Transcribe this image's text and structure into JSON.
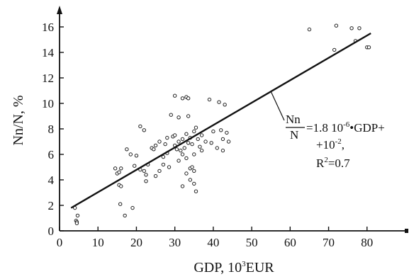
{
  "chart_data": {
    "type": "scatter",
    "title": "",
    "xlabel": "GDP, 10",
    "xlabel_sup": "3",
    "xlabel_unit": "EUR",
    "ylabel": "Nn/N, %",
    "xlim": [
      0,
      90
    ],
    "ylim": [
      0,
      17
    ],
    "x_ticks": [
      0,
      10,
      20,
      30,
      40,
      50,
      60,
      70,
      80
    ],
    "y_ticks": [
      0,
      2,
      4,
      6,
      8,
      10,
      12,
      14,
      16
    ],
    "grid": false,
    "points": [
      [
        4,
        1.8
      ],
      [
        4.3,
        0.8
      ],
      [
        4.5,
        0.7
      ],
      [
        4.5,
        0.6
      ],
      [
        4.7,
        1.2
      ],
      [
        14.5,
        4.9
      ],
      [
        15,
        4.5
      ],
      [
        15.5,
        4.6
      ],
      [
        15.5,
        3.6
      ],
      [
        16,
        4.9
      ],
      [
        16,
        3.5
      ],
      [
        15.8,
        2.1
      ],
      [
        17,
        1.2
      ],
      [
        17.5,
        6.4
      ],
      [
        18.5,
        6.0
      ],
      [
        19,
        1.8
      ],
      [
        19.5,
        5.1
      ],
      [
        20,
        5.9
      ],
      [
        21,
        8.2
      ],
      [
        21,
        4.8
      ],
      [
        22,
        7.9
      ],
      [
        22,
        4.7
      ],
      [
        22.5,
        4.4
      ],
      [
        22.5,
        3.9
      ],
      [
        23,
        5.2
      ],
      [
        24,
        6.5
      ],
      [
        24.5,
        6.4
      ],
      [
        25,
        6.7
      ],
      [
        25,
        4.3
      ],
      [
        26,
        7.0
      ],
      [
        26,
        4.7
      ],
      [
        27,
        5.8
      ],
      [
        27,
        5.2
      ],
      [
        27.5,
        6.8
      ],
      [
        28,
        7.3
      ],
      [
        28,
        6.1
      ],
      [
        28.5,
        5.0
      ],
      [
        29,
        9.1
      ],
      [
        29.5,
        7.4
      ],
      [
        30,
        10.6
      ],
      [
        30,
        7.5
      ],
      [
        30,
        6.7
      ],
      [
        30.5,
        6.4
      ],
      [
        31,
        8.9
      ],
      [
        31,
        7.0
      ],
      [
        31,
        5.5
      ],
      [
        31.5,
        6.3
      ],
      [
        32,
        10.4
      ],
      [
        32,
        7.2
      ],
      [
        32,
        6.0
      ],
      [
        32,
        3.5
      ],
      [
        32.5,
        6.5
      ],
      [
        33,
        10.5
      ],
      [
        33,
        7.6
      ],
      [
        33,
        5.7
      ],
      [
        33,
        4.5
      ],
      [
        33.5,
        10.4
      ],
      [
        33.5,
        9.0
      ],
      [
        33.5,
        6.9
      ],
      [
        34,
        7.3
      ],
      [
        34,
        4.9
      ],
      [
        34,
        4.0
      ],
      [
        34.5,
        6.8
      ],
      [
        34.5,
        5.0
      ],
      [
        35,
        7.8
      ],
      [
        35,
        6.0
      ],
      [
        35,
        4.7
      ],
      [
        35,
        3.7
      ],
      [
        35.5,
        3.1
      ],
      [
        35.5,
        8.1
      ],
      [
        36,
        7.2
      ],
      [
        36.5,
        6.6
      ],
      [
        37,
        7.5
      ],
      [
        37,
        6.3
      ],
      [
        38,
        7.0
      ],
      [
        39,
        10.3
      ],
      [
        39.5,
        6.9
      ],
      [
        40,
        7.8
      ],
      [
        41,
        6.5
      ],
      [
        41.5,
        10.1
      ],
      [
        42,
        7.9
      ],
      [
        42.5,
        7.2
      ],
      [
        42.5,
        6.3
      ],
      [
        43,
        9.9
      ],
      [
        43.5,
        7.7
      ],
      [
        44,
        7.0
      ],
      [
        65,
        15.8
      ],
      [
        71.5,
        14.2
      ],
      [
        72,
        16.1
      ],
      [
        76,
        15.9
      ],
      [
        77,
        14.9
      ],
      [
        78,
        15.9
      ],
      [
        80,
        14.4
      ],
      [
        80.5,
        14.4
      ]
    ],
    "fit_line": {
      "x": [
        3,
        81
      ],
      "y": [
        1.8,
        15.5
      ]
    },
    "annotation": {
      "frac_num": "Nn",
      "frac_den": "N",
      "eq_part1": "=1.8 10",
      "eq_sup1": "-6",
      "eq_part2": "•GDP+",
      "eq_line2": "+10",
      "eq_sup2": "-2",
      "eq_line2_end": ",",
      "r2_pre": "R",
      "r2_sup": "2",
      "r2_post": "=0.7"
    }
  }
}
